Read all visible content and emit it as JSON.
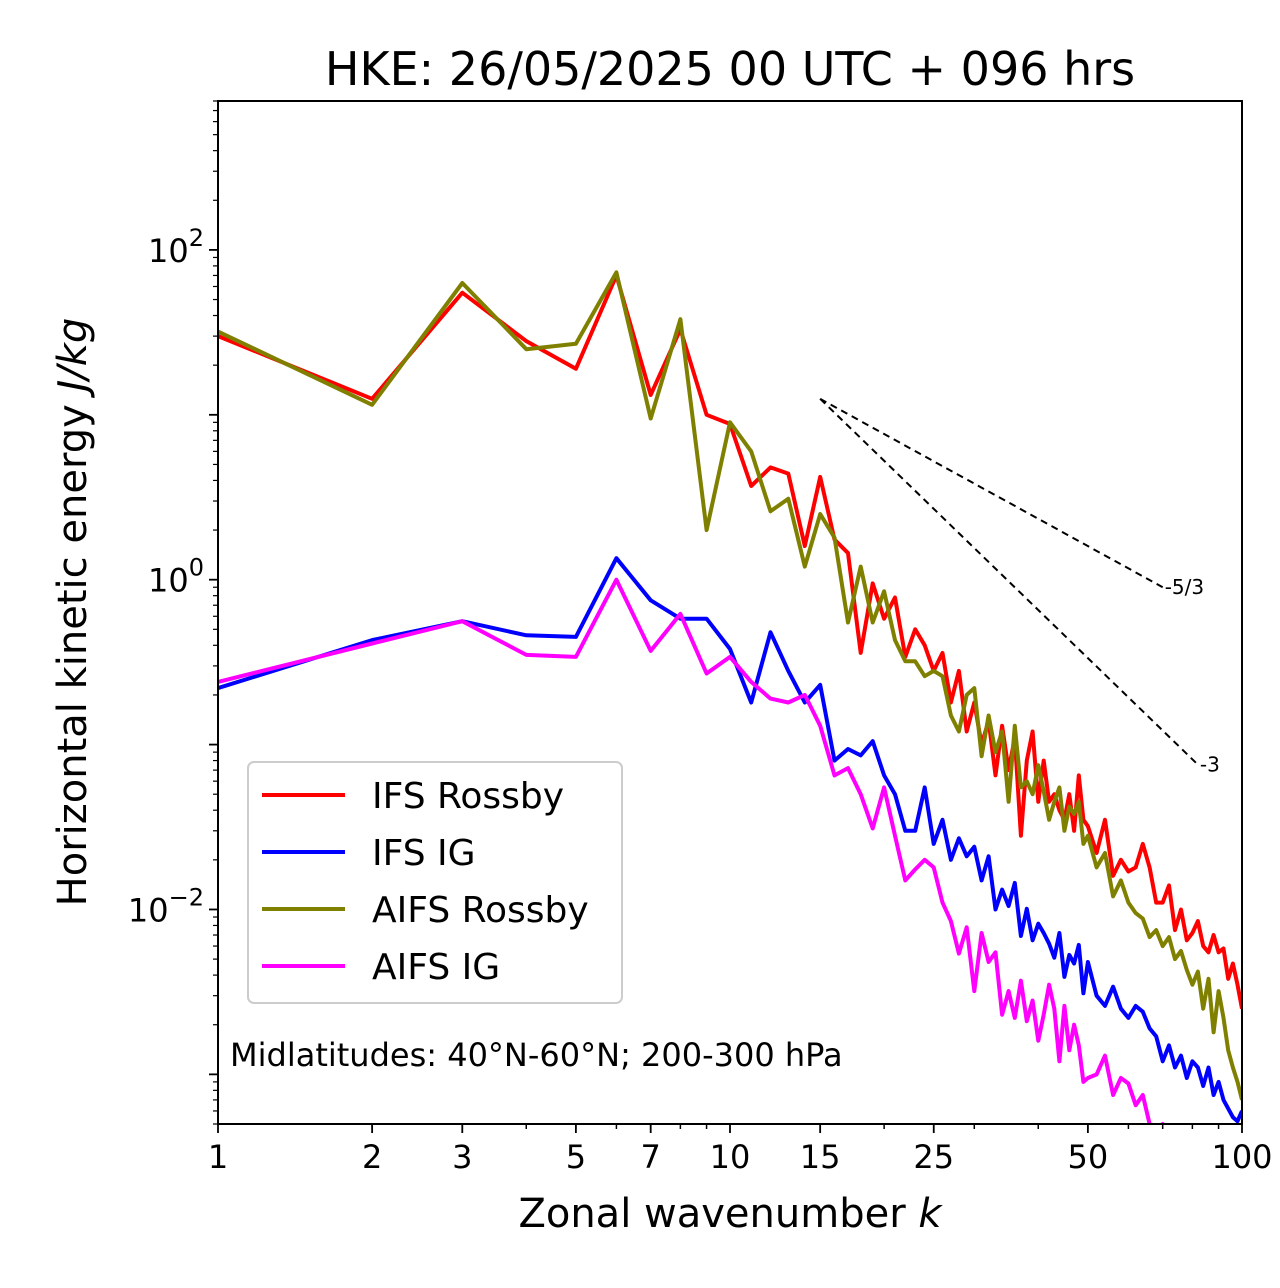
{
  "chart_data": {
    "type": "line",
    "title": "HKE: 26/05/2025 00 UTC + 096 hrs",
    "xlabel": "Zonal wavenumber",
    "xlabel_var": "k",
    "ylabel": "Horizontal kinetic energy",
    "ylabel_unit": "J/kg",
    "xscale": "log",
    "yscale": "log",
    "xlim": [
      1,
      100
    ],
    "ylim": [
      0.0005,
      800
    ],
    "xticks": [
      1,
      2,
      3,
      5,
      7,
      10,
      15,
      25,
      50,
      100
    ],
    "xtick_labels": [
      "1",
      "2",
      "3",
      "5",
      "7",
      "10",
      "15",
      "25",
      "50",
      "100"
    ],
    "yticks": [
      {
        "value": 100,
        "base": "10",
        "exp": "2"
      },
      {
        "value": 1,
        "base": "10",
        "exp": "0"
      },
      {
        "value": 0.01,
        "base": "10",
        "exp": "−2"
      }
    ],
    "legend_position": "lower-left",
    "annotation": "Midlatitudes: 40°N-60°N; 200-300 hPa",
    "reference_lines": [
      {
        "label": "-5/3",
        "x": [
          15,
          70
        ],
        "y": [
          12.5,
          0.9
        ]
      },
      {
        "label": "-3",
        "x": [
          15,
          82
        ],
        "y": [
          12.5,
          0.0756
        ]
      }
    ],
    "series": [
      {
        "name": "IFS Rossby",
        "color": "#ff0000",
        "x": [
          1,
          2,
          3,
          4,
          5,
          6,
          7,
          8,
          9,
          10,
          11,
          12,
          13,
          14,
          15,
          16,
          17,
          18,
          19,
          20,
          21,
          22,
          23,
          24,
          25,
          26,
          27,
          28,
          29,
          30,
          31,
          32,
          33,
          34,
          35,
          36,
          37,
          38,
          39,
          40,
          41,
          42,
          43,
          44,
          45,
          46,
          47,
          48,
          49,
          50,
          52,
          54,
          56,
          58,
          60,
          62,
          64,
          66,
          68,
          70,
          72,
          74,
          76,
          78,
          80,
          82,
          84,
          86,
          88,
          90,
          92,
          94,
          96,
          98,
          100
        ],
        "y": [
          30,
          12.5,
          55,
          28,
          19,
          70,
          13.2,
          33,
          10,
          8.8,
          3.7,
          4.8,
          4.4,
          1.6,
          4.2,
          1.75,
          1.45,
          0.36,
          0.95,
          0.58,
          0.78,
          0.34,
          0.5,
          0.4,
          0.28,
          0.36,
          0.18,
          0.28,
          0.12,
          0.18,
          0.1,
          0.14,
          0.065,
          0.13,
          0.07,
          0.11,
          0.028,
          0.08,
          0.12,
          0.045,
          0.08,
          0.045,
          0.05,
          0.04,
          0.035,
          0.05,
          0.03,
          0.065,
          0.035,
          0.032,
          0.022,
          0.035,
          0.016,
          0.02,
          0.017,
          0.018,
          0.025,
          0.018,
          0.011,
          0.011,
          0.014,
          0.0075,
          0.01,
          0.0065,
          0.0072,
          0.0085,
          0.006,
          0.0055,
          0.007,
          0.0055,
          0.0058,
          0.0038,
          0.0047,
          0.0035,
          0.0025
        ]
      },
      {
        "name": "IFS IG",
        "color": "#0000ff",
        "x": [
          1,
          2,
          3,
          4,
          5,
          6,
          7,
          8,
          9,
          10,
          11,
          12,
          13,
          14,
          15,
          16,
          17,
          18,
          19,
          20,
          21,
          22,
          23,
          24,
          25,
          26,
          27,
          28,
          29,
          30,
          31,
          32,
          33,
          34,
          35,
          36,
          37,
          38,
          39,
          40,
          41,
          42,
          43,
          44,
          45,
          46,
          47,
          48,
          49,
          50,
          52,
          54,
          56,
          58,
          60,
          62,
          64,
          66,
          68,
          70,
          72,
          74,
          76,
          78,
          80,
          82,
          84,
          86,
          88,
          90,
          92,
          94,
          96,
          98,
          100
        ],
        "y": [
          0.22,
          0.43,
          0.56,
          0.46,
          0.45,
          1.35,
          0.75,
          0.58,
          0.58,
          0.38,
          0.18,
          0.48,
          0.28,
          0.18,
          0.23,
          0.08,
          0.094,
          0.086,
          0.105,
          0.065,
          0.05,
          0.03,
          0.03,
          0.055,
          0.025,
          0.035,
          0.02,
          0.027,
          0.021,
          0.024,
          0.015,
          0.021,
          0.01,
          0.0132,
          0.0105,
          0.0145,
          0.0069,
          0.0101,
          0.0065,
          0.0082,
          0.0072,
          0.0062,
          0.0051,
          0.0072,
          0.0039,
          0.0053,
          0.0047,
          0.0061,
          0.0031,
          0.0048,
          0.003,
          0.0026,
          0.0034,
          0.0025,
          0.0022,
          0.0026,
          0.0024,
          0.0019,
          0.0017,
          0.0012,
          0.0015,
          0.0011,
          0.0013,
          0.00095,
          0.0012,
          0.0011,
          0.00085,
          0.0011,
          0.00075,
          0.0009,
          0.0007,
          0.00062,
          0.00055,
          0.00052,
          0.0006
        ]
      },
      {
        "name": "AIFS Rossby",
        "color": "#808000",
        "x": [
          1,
          2,
          3,
          4,
          5,
          6,
          7,
          8,
          9,
          10,
          11,
          12,
          13,
          14,
          15,
          16,
          17,
          18,
          19,
          20,
          21,
          22,
          23,
          24,
          25,
          26,
          27,
          28,
          29,
          30,
          31,
          32,
          33,
          34,
          35,
          36,
          37,
          38,
          39,
          40,
          41,
          42,
          43,
          44,
          45,
          46,
          47,
          48,
          49,
          50,
          52,
          54,
          56,
          58,
          60,
          62,
          64,
          66,
          68,
          70,
          72,
          74,
          76,
          78,
          80,
          82,
          84,
          86,
          88,
          90,
          92,
          94,
          96,
          98,
          100
        ],
        "y": [
          32,
          11.5,
          63,
          25,
          27,
          73,
          9.5,
          38,
          2,
          9,
          6,
          2.6,
          3.1,
          1.2,
          2.5,
          1.8,
          0.55,
          1.2,
          0.55,
          0.85,
          0.43,
          0.32,
          0.32,
          0.26,
          0.28,
          0.26,
          0.15,
          0.12,
          0.2,
          0.22,
          0.085,
          0.15,
          0.09,
          0.12,
          0.045,
          0.13,
          0.055,
          0.06,
          0.05,
          0.075,
          0.052,
          0.035,
          0.045,
          0.055,
          0.03,
          0.042,
          0.038,
          0.045,
          0.025,
          0.028,
          0.018,
          0.022,
          0.012,
          0.015,
          0.011,
          0.0095,
          0.0088,
          0.0068,
          0.0075,
          0.006,
          0.0068,
          0.005,
          0.0056,
          0.0043,
          0.0035,
          0.0042,
          0.0025,
          0.0038,
          0.0018,
          0.0032,
          0.0022,
          0.0014,
          0.0011,
          0.0009,
          0.0007
        ]
      },
      {
        "name": "AIFS IG",
        "color": "#ff00ff",
        "x": [
          1,
          2,
          3,
          4,
          5,
          6,
          7,
          8,
          9,
          10,
          11,
          12,
          13,
          14,
          15,
          16,
          17,
          18,
          19,
          20,
          21,
          22,
          23,
          24,
          25,
          26,
          27,
          28,
          29,
          30,
          31,
          32,
          33,
          34,
          35,
          36,
          37,
          38,
          39,
          40,
          41,
          42,
          43,
          44,
          45,
          46,
          47,
          48,
          49,
          50,
          52,
          54,
          56,
          58,
          60,
          62,
          64,
          66,
          68,
          70,
          72,
          74
        ],
        "y": [
          0.24,
          0.41,
          0.56,
          0.35,
          0.34,
          1,
          0.37,
          0.62,
          0.27,
          0.34,
          0.24,
          0.19,
          0.18,
          0.2,
          0.13,
          0.065,
          0.072,
          0.05,
          0.031,
          0.055,
          0.028,
          0.015,
          0.0175,
          0.02,
          0.018,
          0.011,
          0.0085,
          0.0054,
          0.0078,
          0.0032,
          0.0072,
          0.0048,
          0.0055,
          0.0023,
          0.0032,
          0.0022,
          0.0037,
          0.0021,
          0.0028,
          0.0016,
          0.0023,
          0.0035,
          0.0025,
          0.0012,
          0.0026,
          0.0014,
          0.002,
          0.0015,
          0.0009,
          0.00095,
          0.001,
          0.0013,
          0.00075,
          0.00095,
          0.00088,
          0.00065,
          0.00075,
          0.0005,
          0.00045,
          0.0005,
          0.0004,
          0.00035
        ]
      }
    ]
  }
}
